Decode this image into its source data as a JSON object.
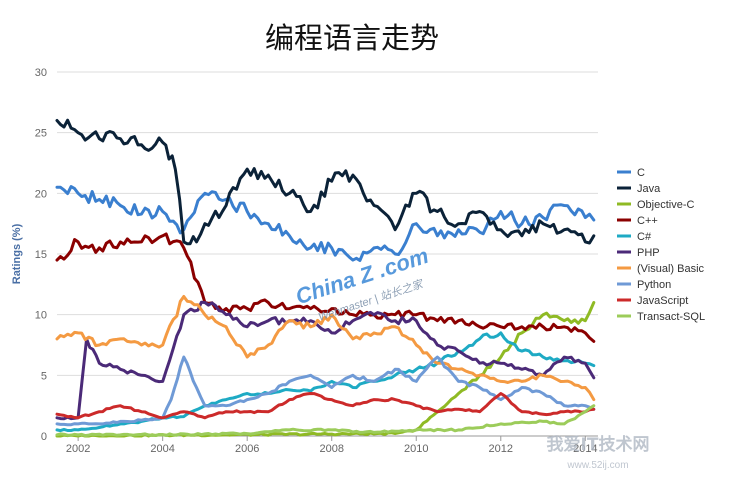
{
  "chart_data": {
    "type": "line",
    "title": "编程语言走势",
    "xlabel": "",
    "ylabel": "Ratings (%)",
    "xlim": [
      2001.5,
      2014.3
    ],
    "ylim": [
      0,
      30
    ],
    "yticks": [
      0,
      5,
      10,
      15,
      20,
      25,
      30
    ],
    "xticks": [
      2002,
      2004,
      2006,
      2008,
      2010,
      2012,
      2014
    ],
    "grid": true,
    "legend_position": "right",
    "series": [
      {
        "name": "C",
        "color": "#3a7fcf",
        "x": [
          2001.5,
          2002,
          2002.5,
          2003,
          2003.5,
          2004,
          2004.5,
          2005,
          2005.5,
          2006,
          2006.5,
          2007,
          2007.5,
          2008,
          2008.5,
          2009,
          2009.5,
          2010,
          2010.5,
          2011,
          2011.5,
          2012,
          2012.5,
          2013,
          2013.5,
          2014,
          2014.2
        ],
        "y": [
          20.5,
          20,
          19.5,
          19,
          18.3,
          18.5,
          17,
          20,
          19.5,
          18.5,
          17.5,
          16.5,
          15.5,
          15.5,
          14.5,
          15.5,
          15,
          17.5,
          16.5,
          17,
          16.8,
          18.5,
          17.5,
          18,
          19,
          18,
          17.8
        ]
      },
      {
        "name": "Java",
        "color": "#0b2238",
        "x": [
          2001.5,
          2002,
          2002.5,
          2003,
          2003.5,
          2004,
          2004.3,
          2004.5,
          2004.8,
          2005,
          2005.5,
          2006,
          2006.5,
          2007,
          2007.5,
          2008,
          2008.5,
          2009,
          2009.5,
          2010,
          2010.5,
          2011,
          2011.5,
          2012,
          2012.5,
          2013,
          2013.5,
          2014,
          2014.2
        ],
        "y": [
          26,
          25,
          24.5,
          24.5,
          24,
          24.2,
          22,
          16,
          16,
          17.5,
          19,
          22,
          21.5,
          20,
          18.5,
          21,
          21.5,
          19,
          17,
          20,
          18.5,
          17.5,
          18.5,
          17,
          16.5,
          17.5,
          17,
          16,
          16.5
        ]
      },
      {
        "name": "Objective-C",
        "color": "#8fba24",
        "x": [
          2001.5,
          2009.5,
          2010,
          2010.5,
          2011,
          2011.5,
          2012,
          2012.5,
          2013,
          2013.5,
          2014,
          2014.2
        ],
        "y": [
          0,
          0.2,
          0.5,
          2,
          3.5,
          5,
          6.5,
          8.5,
          10,
          9.5,
          9.5,
          11
        ]
      },
      {
        "name": "C++",
        "color": "#8b0000",
        "x": [
          2001.5,
          2002,
          2002.5,
          2003,
          2003.5,
          2004,
          2004.5,
          2005,
          2005.5,
          2006,
          2006.5,
          2007,
          2007.5,
          2008,
          2008.5,
          2009,
          2009.5,
          2010,
          2010.5,
          2011,
          2011.5,
          2012,
          2012.5,
          2013,
          2013.5,
          2014,
          2014.2
        ],
        "y": [
          14.5,
          16,
          15.5,
          16,
          16,
          16.5,
          15.5,
          11,
          10.5,
          10.5,
          11,
          10.5,
          10.5,
          10.5,
          10,
          10,
          10,
          10,
          9.5,
          9.5,
          9,
          9,
          9,
          9,
          9,
          8.5,
          7.8
        ]
      },
      {
        "name": "C#",
        "color": "#1eaac4",
        "x": [
          2001.5,
          2002,
          2002.5,
          2003,
          2003.5,
          2004,
          2004.5,
          2005,
          2005.5,
          2006,
          2006.5,
          2007,
          2007.5,
          2008,
          2008.5,
          2009,
          2009.5,
          2010,
          2010.5,
          2011,
          2011.5,
          2012,
          2012.5,
          2013,
          2013.5,
          2014,
          2014.2
        ],
        "y": [
          0.5,
          0.5,
          0.7,
          1,
          1.2,
          1.5,
          1.6,
          2.5,
          3,
          3.5,
          3.5,
          3.8,
          3.7,
          4.5,
          4,
          4.5,
          5,
          5.5,
          6,
          7,
          8,
          8.5,
          7,
          6.5,
          6.2,
          6,
          5.8
        ]
      },
      {
        "name": "PHP",
        "color": "#4b2a78",
        "x": [
          2001.5,
          2002,
          2002.2,
          2002.5,
          2003,
          2003.5,
          2004,
          2004.5,
          2005,
          2005.5,
          2006,
          2006.5,
          2007,
          2007.5,
          2008,
          2008.5,
          2009,
          2009.5,
          2010,
          2010.5,
          2011,
          2011.5,
          2012,
          2012.5,
          2013,
          2013.5,
          2014,
          2014.2
        ],
        "y": [
          1.5,
          1.5,
          8,
          6,
          5.5,
          5,
          4.5,
          10,
          11,
          10,
          9,
          9.5,
          9.5,
          9.5,
          8.5,
          9.5,
          10,
          9.5,
          9.5,
          7.5,
          7,
          6,
          6,
          5.5,
          5,
          6.5,
          6,
          4.8
        ]
      },
      {
        "name": "(Visual) Basic",
        "color": "#f49a42",
        "x": [
          2001.5,
          2002,
          2002.5,
          2003,
          2003.5,
          2004,
          2004.5,
          2005,
          2005.5,
          2006,
          2006.5,
          2007,
          2007.5,
          2008,
          2008.5,
          2009,
          2009.5,
          2010,
          2010.5,
          2011,
          2011.5,
          2012,
          2012.5,
          2013,
          2013.5,
          2014,
          2014.2
        ],
        "y": [
          8,
          8.5,
          7.5,
          8,
          7.5,
          7.5,
          11.5,
          10,
          9,
          6.5,
          7.5,
          9.5,
          9,
          10,
          8,
          8.5,
          9,
          7.5,
          6,
          5.5,
          5,
          4.5,
          4.5,
          5,
          4.5,
          4,
          3
        ]
      },
      {
        "name": "Python",
        "color": "#6f9ad6",
        "x": [
          2001.5,
          2002,
          2002.5,
          2003,
          2003.5,
          2004,
          2004.2,
          2004.5,
          2004.8,
          2005,
          2005.5,
          2006,
          2006.5,
          2007,
          2007.5,
          2008,
          2008.5,
          2009,
          2009.5,
          2010,
          2010.5,
          2011,
          2011.5,
          2012,
          2012.5,
          2013,
          2013.5,
          2014,
          2014.2
        ],
        "y": [
          1,
          1,
          1,
          1.2,
          1.3,
          1.5,
          3,
          6.5,
          4,
          2.5,
          2.5,
          3,
          3.5,
          4.5,
          5,
          4,
          5,
          4.5,
          5.5,
          4.5,
          6.5,
          4.5,
          4,
          3,
          4,
          3.5,
          2.5,
          2.5,
          2.2
        ]
      },
      {
        "name": "JavaScript",
        "color": "#cc2a2a",
        "x": [
          2001.5,
          2002,
          2002.5,
          2003,
          2003.5,
          2004,
          2004.5,
          2005,
          2005.5,
          2006,
          2006.5,
          2007,
          2007.5,
          2008,
          2008.5,
          2009,
          2009.5,
          2010,
          2010.5,
          2011,
          2011.5,
          2012,
          2012.5,
          2013,
          2013.5,
          2014,
          2014.2
        ],
        "y": [
          1.8,
          1.5,
          2,
          2.5,
          2,
          1.5,
          2,
          1.5,
          2,
          2,
          2,
          3,
          3.5,
          3,
          2.5,
          3,
          3,
          2.5,
          2,
          2.2,
          2,
          3.5,
          2,
          1.8,
          2,
          2,
          2.2
        ]
      },
      {
        "name": "Transact-SQL",
        "color": "#9ccc5a",
        "x": [
          2001.5,
          2004,
          2006,
          2007,
          2008,
          2009,
          2010,
          2011,
          2012,
          2013,
          2013.5,
          2014,
          2014.2
        ],
        "y": [
          0.1,
          0.1,
          0.2,
          0.5,
          0.5,
          0.3,
          0.5,
          0.5,
          1,
          1.2,
          1,
          2,
          2.5
        ]
      }
    ]
  },
  "watermark": {
    "brand": "China Z .com",
    "sub": "Webmaster | 站长之家",
    "corner": "我爱IT技术网",
    "corner_url": "www.52ij.com"
  }
}
